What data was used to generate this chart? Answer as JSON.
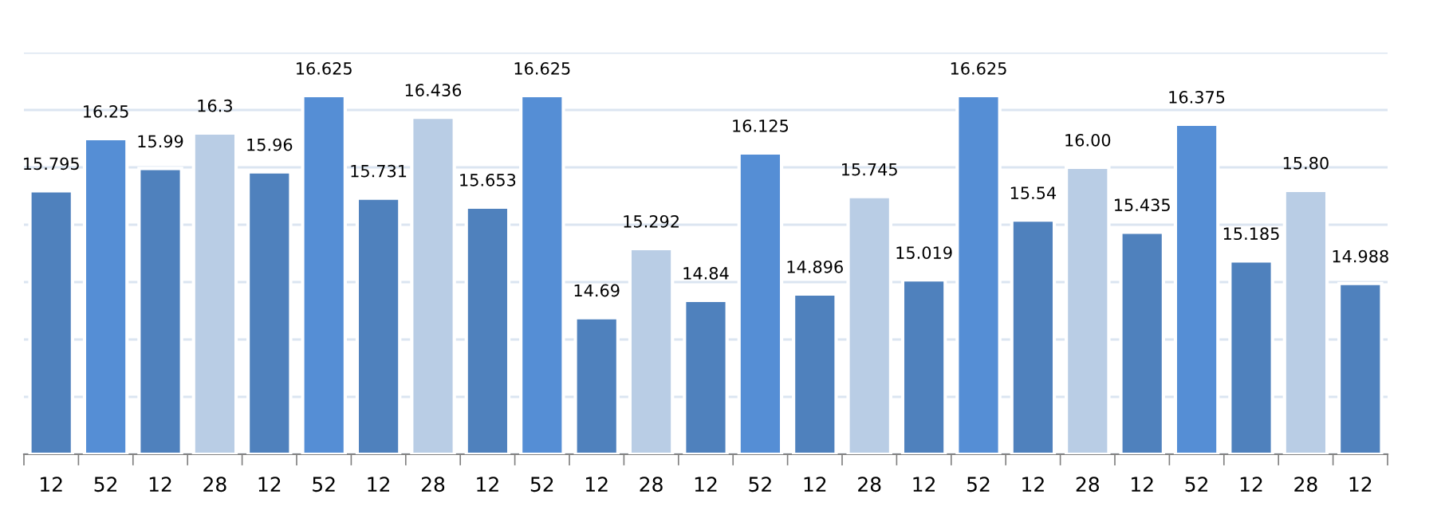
{
  "chart_data": {
    "type": "bar",
    "categories": [
      "12",
      "52",
      "12",
      "28",
      "12",
      "52",
      "12",
      "28",
      "12",
      "52",
      "12",
      "28",
      "12",
      "52",
      "12",
      "28",
      "12",
      "52",
      "12",
      "28",
      "12",
      "52",
      "12",
      "28",
      "12"
    ],
    "values": [
      15.795,
      16.25,
      15.99,
      16.3,
      15.96,
      16.625,
      15.731,
      16.436,
      15.653,
      16.625,
      14.69,
      15.292,
      14.84,
      16.125,
      14.896,
      15.745,
      15.019,
      16.625,
      15.54,
      16.0,
      15.435,
      16.375,
      15.185,
      15.8,
      14.988
    ],
    "value_labels": [
      "15.795",
      "16.25",
      "15.99",
      "16.3",
      "15.96",
      "16.625",
      "15.731",
      "16.436",
      "15.653",
      "16.625",
      "14.69",
      "15.292",
      "14.84",
      "16.125",
      "14.896",
      "15.745",
      "15.019",
      "16.625",
      "15.54",
      "16.00",
      "15.435",
      "16.375",
      "15.185",
      "15.80",
      "14.988"
    ],
    "colors": [
      "#4f81bd",
      "#558ed5",
      "#4f81bd",
      "#b9cde5",
      "#4f81bd",
      "#558ed5",
      "#4f81bd",
      "#b9cde5",
      "#4f81bd",
      "#558ed5",
      "#4f81bd",
      "#b9cde5",
      "#4f81bd",
      "#558ed5",
      "#4f81bd",
      "#b9cde5",
      "#4f81bd",
      "#558ed5",
      "#4f81bd",
      "#b9cde5",
      "#4f81bd",
      "#558ed5",
      "#4f81bd",
      "#b9cde5",
      "#4f81bd"
    ],
    "ylim": [
      13.5,
      17.0
    ],
    "yticks": [
      {
        "value": 13.5,
        "label": null
      },
      {
        "value": 14.0,
        "label": null
      },
      {
        "value": 14.5,
        "label": null
      },
      {
        "value": 15.0,
        "label": null
      },
      {
        "value": 15.5,
        "label": null
      },
      {
        "value": 16.0,
        "label": null
      },
      {
        "value": 16.5,
        "label": null
      },
      {
        "value": 17.0,
        "label": null
      }
    ],
    "grid": "y",
    "tick_labels": "x"
  }
}
